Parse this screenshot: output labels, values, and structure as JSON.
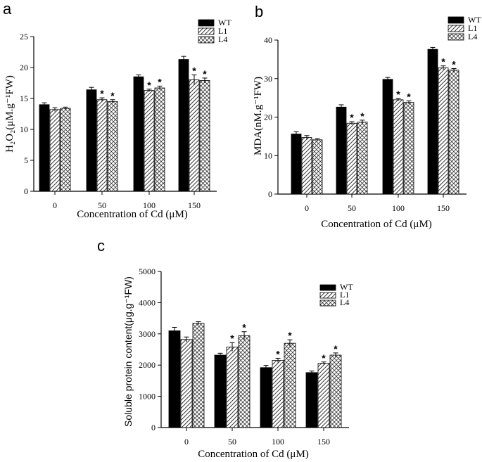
{
  "chart_data": [
    {
      "panel_label": "a",
      "type": "bar",
      "categories": [
        "0",
        "50",
        "100",
        "150"
      ],
      "series": [
        {
          "name": "WT",
          "values": [
            14.0,
            16.4,
            18.5,
            21.3
          ],
          "errors": [
            0.3,
            0.4,
            0.3,
            0.5
          ],
          "stars": [
            false,
            false,
            false,
            false
          ]
        },
        {
          "name": "L1",
          "values": [
            13.2,
            14.8,
            16.3,
            18.0
          ],
          "errors": [
            0.3,
            0.3,
            0.2,
            0.8
          ],
          "stars": [
            false,
            true,
            true,
            true
          ]
        },
        {
          "name": "L4",
          "values": [
            13.4,
            14.5,
            16.7,
            17.9
          ],
          "errors": [
            0.2,
            0.3,
            0.3,
            0.4
          ],
          "stars": [
            false,
            true,
            true,
            true
          ]
        }
      ],
      "ylabel": "H₂O₂(μM.g⁻¹FW)",
      "xlabel": "Concentration of Cd (μM)",
      "ylim": [
        0,
        25
      ],
      "yticks": [
        "0",
        "5",
        "10",
        "15",
        "20",
        "25"
      ],
      "star_symbol": "*"
    },
    {
      "panel_label": "b",
      "type": "bar",
      "categories": [
        "0",
        "50",
        "100",
        "150"
      ],
      "series": [
        {
          "name": "WT",
          "values": [
            15.6,
            22.6,
            29.8,
            37.6
          ],
          "errors": [
            0.6,
            0.6,
            0.5,
            0.5
          ],
          "stars": [
            false,
            false,
            false,
            false
          ]
        },
        {
          "name": "L1",
          "values": [
            14.7,
            18.4,
            24.5,
            32.8
          ],
          "errors": [
            0.5,
            0.4,
            0.3,
            0.5
          ],
          "stars": [
            false,
            true,
            true,
            true
          ]
        },
        {
          "name": "L4",
          "values": [
            14.1,
            18.7,
            23.8,
            32.2
          ],
          "errors": [
            0.3,
            0.5,
            0.4,
            0.4
          ],
          "stars": [
            false,
            true,
            true,
            true
          ]
        }
      ],
      "ylabel": "MDA(nM.g⁻¹FW)",
      "xlabel": "Concentration of Cd (μM)",
      "ylim": [
        0,
        40
      ],
      "yticks": [
        "0",
        "10",
        "20",
        "30",
        "40"
      ],
      "star_symbol": "*"
    },
    {
      "panel_label": "c",
      "type": "bar",
      "categories": [
        "0",
        "50",
        "100",
        "150"
      ],
      "series": [
        {
          "name": "WT",
          "values": [
            3100,
            2320,
            1920,
            1760
          ],
          "errors": [
            110,
            60,
            70,
            50
          ],
          "stars": [
            false,
            false,
            false,
            false
          ]
        },
        {
          "name": "L1",
          "values": [
            2820,
            2580,
            2150,
            2060
          ],
          "errors": [
            80,
            140,
            70,
            40
          ],
          "stars": [
            false,
            true,
            true,
            true
          ]
        },
        {
          "name": "L4",
          "values": [
            3340,
            2940,
            2700,
            2320
          ],
          "errors": [
            50,
            130,
            110,
            70
          ],
          "stars": [
            false,
            true,
            true,
            true
          ]
        }
      ],
      "ylabel": "Soluble protein content(μg.g⁻¹FW)",
      "xlabel": "Concentration of Cd (μM)",
      "ylim": [
        0,
        5000
      ],
      "yticks": [
        "0",
        "1000",
        "2000",
        "3000",
        "4000",
        "5000"
      ],
      "star_symbol": "*"
    }
  ],
  "colors": {
    "axis": "#000000",
    "bar_dark": "#000000",
    "background": "#ffffff"
  }
}
